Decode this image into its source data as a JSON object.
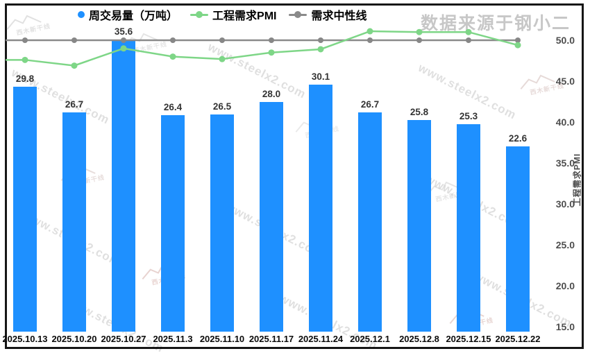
{
  "watermark_source": "数据来源于钢小二",
  "watermark_site": "www.steelx2.com",
  "watermark_logo_text": "西木新干线",
  "legend": {
    "items": [
      {
        "label": "周交易量（万吨）",
        "marker": "circle",
        "color": "#1E90FF"
      },
      {
        "label": "工程需求PMI",
        "marker": "line-dot",
        "color": "#7ED687"
      },
      {
        "label": "需求中性线",
        "marker": "line-dot",
        "color": "#8A8A8A"
      }
    ]
  },
  "chart_data": {
    "type": "bar",
    "subtype": "bar+line combo",
    "categories": [
      "2025.10.13",
      "2025.10.20",
      "2025.10.27",
      "2025.11.3",
      "2025.11.10",
      "2025.11.17",
      "2025.11.24",
      "2025.12.1",
      "2025.12.8",
      "2025.12.15",
      "2025.12.22"
    ],
    "series": [
      {
        "name": "周交易量（万吨）",
        "type": "bar",
        "color": "#1E90FF",
        "axis": "left-hidden",
        "values": [
          29.8,
          26.7,
          35.6,
          26.4,
          26.5,
          28.0,
          30.1,
          26.7,
          25.8,
          25.3,
          22.6
        ],
        "labels": [
          "29.8",
          "26.7",
          "35.6",
          "26.4",
          "26.5",
          "28.0",
          "30.1",
          "26.7",
          "25.8",
          "25.3",
          "22.6"
        ]
      },
      {
        "name": "工程需求PMI",
        "type": "line",
        "color": "#7ED687",
        "axis": "right",
        "values": [
          47.6,
          46.9,
          49.0,
          48.0,
          47.7,
          48.5,
          48.9,
          51.1,
          51.0,
          51.0,
          49.4
        ]
      },
      {
        "name": "需求中性线",
        "type": "line",
        "color": "#8A8A8A",
        "axis": "right",
        "values": [
          50,
          50,
          50,
          50,
          50,
          50,
          50,
          50,
          50,
          50,
          50
        ]
      }
    ],
    "right_axis": {
      "title": "工程需求PMI",
      "ticks": [
        "50.0",
        "45.0",
        "40.0",
        "35.0",
        "30.0",
        "25.0",
        "20.0",
        "15.0"
      ],
      "tick_values": [
        50,
        45,
        40,
        35,
        30,
        25,
        20,
        15
      ],
      "min": 15,
      "max": 50
    },
    "left_axis": {
      "visible": false,
      "min": 0
    },
    "title": "",
    "xlabel": "",
    "ylabel": "工程需求PMI",
    "legend_position": "top",
    "grid": "off"
  }
}
